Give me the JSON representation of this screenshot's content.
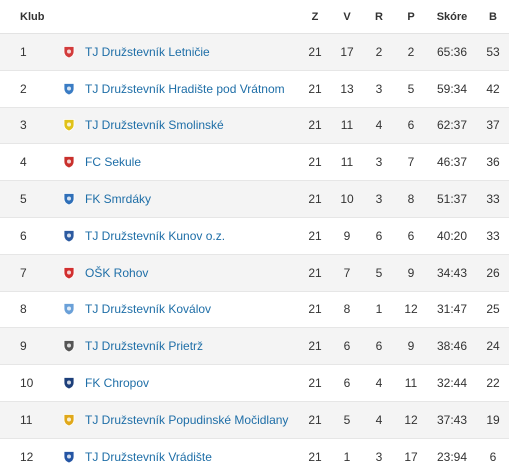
{
  "header": {
    "club": "Klub",
    "z": "Z",
    "v": "V",
    "r": "R",
    "p": "P",
    "score": "Skóre",
    "b": "B"
  },
  "rows": [
    {
      "rank": "1",
      "club": "TJ Družstevník Letničie",
      "z": "21",
      "v": "17",
      "r": "2",
      "p": "2",
      "score": "65:36",
      "b": "53",
      "logo_icon": "club-crest-icon",
      "logo_color": "#d23b3b"
    },
    {
      "rank": "2",
      "club": "TJ Družstevník Hradište pod Vrátnom",
      "z": "21",
      "v": "13",
      "r": "3",
      "p": "5",
      "score": "59:34",
      "b": "42",
      "logo_icon": "club-crest-icon",
      "logo_color": "#3a7cc4"
    },
    {
      "rank": "3",
      "club": "TJ Družstevník Smolinské",
      "z": "21",
      "v": "11",
      "r": "4",
      "p": "6",
      "score": "62:37",
      "b": "37",
      "logo_icon": "club-crest-icon",
      "logo_color": "#e0c21a"
    },
    {
      "rank": "4",
      "club": "FC Sekule",
      "z": "21",
      "v": "11",
      "r": "3",
      "p": "7",
      "score": "46:37",
      "b": "36",
      "logo_icon": "club-crest-icon",
      "logo_color": "#c9302c"
    },
    {
      "rank": "5",
      "club": "FK Smrdáky",
      "z": "21",
      "v": "10",
      "r": "3",
      "p": "8",
      "score": "51:37",
      "b": "33",
      "logo_icon": "club-crest-icon",
      "logo_color": "#2f6fb8"
    },
    {
      "rank": "6",
      "club": "TJ Družstevník Kunov o.z.",
      "z": "21",
      "v": "9",
      "r": "6",
      "p": "6",
      "score": "40:20",
      "b": "33",
      "logo_icon": "club-crest-icon",
      "logo_color": "#2c5aa0"
    },
    {
      "rank": "7",
      "club": "OŠK Rohov",
      "z": "21",
      "v": "7",
      "r": "5",
      "p": "9",
      "score": "34:43",
      "b": "26",
      "logo_icon": "club-crest-icon",
      "logo_color": "#d12f2f"
    },
    {
      "rank": "8",
      "club": "TJ Družstevník Koválov",
      "z": "21",
      "v": "8",
      "r": "1",
      "p": "12",
      "score": "31:47",
      "b": "25",
      "logo_icon": "club-crest-icon",
      "logo_color": "#6aa0d8"
    },
    {
      "rank": "9",
      "club": "TJ Družstevník Prietrž",
      "z": "21",
      "v": "6",
      "r": "6",
      "p": "9",
      "score": "38:46",
      "b": "24",
      "logo_icon": "club-crest-icon",
      "logo_color": "#555555"
    },
    {
      "rank": "10",
      "club": "FK Chropov",
      "z": "21",
      "v": "6",
      "r": "4",
      "p": "11",
      "score": "32:44",
      "b": "22",
      "logo_icon": "club-crest-icon",
      "logo_color": "#1d3f7a"
    },
    {
      "rank": "11",
      "club": "TJ Družstevník Popudinské Močidlany",
      "z": "21",
      "v": "5",
      "r": "4",
      "p": "12",
      "score": "37:43",
      "b": "19",
      "logo_icon": "club-crest-icon",
      "logo_color": "#e0a81a"
    },
    {
      "rank": "12",
      "club": "TJ Družstevník Vrádište",
      "z": "21",
      "v": "1",
      "r": "3",
      "p": "17",
      "score": "23:94",
      "b": "6",
      "logo_icon": "club-crest-icon",
      "logo_color": "#2455a4"
    }
  ]
}
